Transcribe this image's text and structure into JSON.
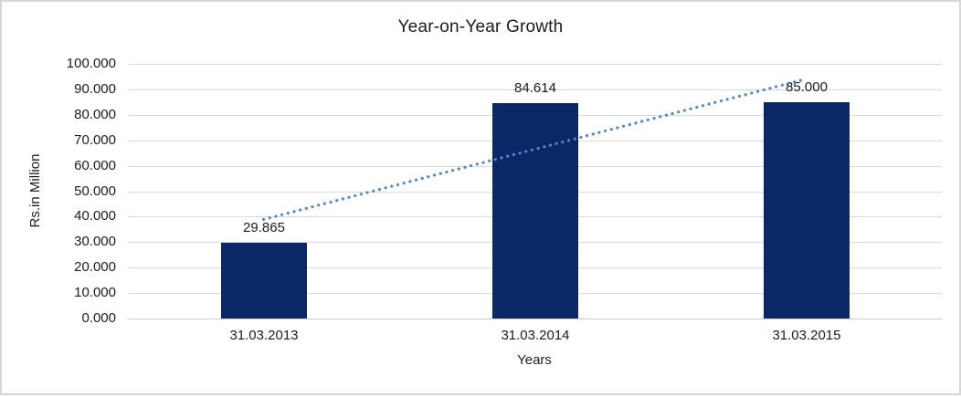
{
  "chart_data": {
    "type": "bar",
    "title": "Year-on-Year Growth",
    "xlabel": "Years",
    "ylabel": "Rs.in Million",
    "categories": [
      "31.03.2013",
      "31.03.2014",
      "31.03.2015"
    ],
    "values": [
      29.865,
      84.614,
      85.0
    ],
    "value_labels": [
      "29.865",
      "84.614",
      "85.000"
    ],
    "ylim": [
      0,
      100
    ],
    "ytick_step": 10,
    "ytick_labels": [
      "0.000",
      "10.000",
      "20.000",
      "30.000",
      "40.000",
      "50.000",
      "60.000",
      "70.000",
      "80.000",
      "90.000",
      "100.000"
    ],
    "grid": "horizontal",
    "legend": "none",
    "trendline": {
      "type": "linear",
      "style": "dotted",
      "start_value": 38.9,
      "end_value": 94.1,
      "color": "#4f87d0"
    },
    "colors": {
      "bar": "#0a2866",
      "gridline": "#d9d9d9",
      "axis_line": "#cccccc",
      "text": "#1c1c1c",
      "frame_border": "#d6d6d6",
      "background": "#ffffff"
    }
  }
}
